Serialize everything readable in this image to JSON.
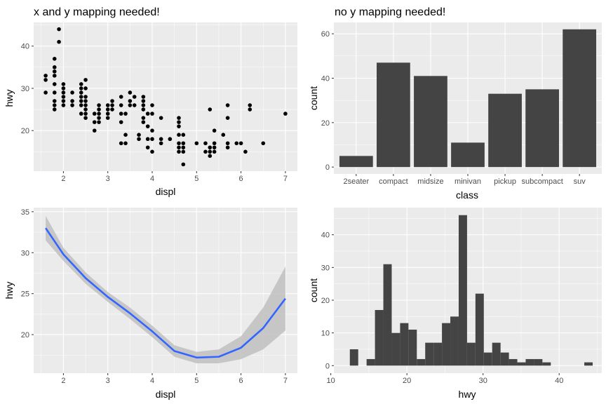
{
  "chart_data": [
    {
      "type": "scatter",
      "title": "x and y mapping needed!",
      "xlabel": "displ",
      "ylabel": "hwy",
      "xlim": [
        1.33,
        7.27
      ],
      "ylim": [
        10.4,
        45.6
      ],
      "xticks": [
        2,
        3,
        4,
        5,
        6,
        7
      ],
      "yticks": [
        20,
        30,
        40
      ],
      "points": [
        [
          1.6,
          33
        ],
        [
          1.6,
          32
        ],
        [
          1.6,
          29
        ],
        [
          1.8,
          37
        ],
        [
          1.8,
          35
        ],
        [
          1.8,
          34
        ],
        [
          1.8,
          33
        ],
        [
          1.8,
          31
        ],
        [
          1.8,
          29
        ],
        [
          1.8,
          27
        ],
        [
          1.8,
          26
        ],
        [
          1.8,
          25
        ],
        [
          1.9,
          44
        ],
        [
          1.9,
          41
        ],
        [
          2.0,
          31
        ],
        [
          2.0,
          30
        ],
        [
          2.0,
          29
        ],
        [
          2.0,
          28
        ],
        [
          2.0,
          27
        ],
        [
          2.0,
          26
        ],
        [
          2.2,
          29
        ],
        [
          2.2,
          27
        ],
        [
          2.2,
          26
        ],
        [
          2.4,
          31
        ],
        [
          2.4,
          30
        ],
        [
          2.4,
          29
        ],
        [
          2.4,
          28
        ],
        [
          2.4,
          27
        ],
        [
          2.4,
          26
        ],
        [
          2.4,
          24
        ],
        [
          2.5,
          32
        ],
        [
          2.5,
          30
        ],
        [
          2.5,
          28
        ],
        [
          2.5,
          27
        ],
        [
          2.5,
          26
        ],
        [
          2.5,
          25
        ],
        [
          2.5,
          24
        ],
        [
          2.5,
          23
        ],
        [
          2.7,
          24
        ],
        [
          2.7,
          22
        ],
        [
          2.7,
          20
        ],
        [
          2.8,
          26
        ],
        [
          2.8,
          25
        ],
        [
          2.8,
          24
        ],
        [
          2.8,
          23
        ],
        [
          2.8,
          22
        ],
        [
          3.0,
          26
        ],
        [
          3.0,
          25
        ],
        [
          3.0,
          24
        ],
        [
          3.0,
          23
        ],
        [
          3.1,
          27
        ],
        [
          3.1,
          26
        ],
        [
          3.1,
          25
        ],
        [
          3.3,
          28
        ],
        [
          3.3,
          26
        ],
        [
          3.3,
          24
        ],
        [
          3.3,
          22
        ],
        [
          3.3,
          17
        ],
        [
          3.4,
          24
        ],
        [
          3.4,
          19
        ],
        [
          3.4,
          17
        ],
        [
          3.5,
          29
        ],
        [
          3.5,
          27
        ],
        [
          3.5,
          26
        ],
        [
          3.6,
          28
        ],
        [
          3.6,
          26
        ],
        [
          3.7,
          19
        ],
        [
          3.7,
          18
        ],
        [
          3.8,
          28
        ],
        [
          3.8,
          27
        ],
        [
          3.8,
          26
        ],
        [
          3.8,
          25
        ],
        [
          3.8,
          23
        ],
        [
          3.8,
          22
        ],
        [
          3.9,
          24
        ],
        [
          3.9,
          21
        ],
        [
          3.9,
          18
        ],
        [
          3.9,
          16
        ],
        [
          4.0,
          26
        ],
        [
          4.0,
          24
        ],
        [
          4.0,
          20
        ],
        [
          4.0,
          18
        ],
        [
          4.0,
          15
        ],
        [
          4.2,
          23
        ],
        [
          4.2,
          18
        ],
        [
          4.2,
          17
        ],
        [
          4.4,
          18
        ],
        [
          4.6,
          23
        ],
        [
          4.6,
          22
        ],
        [
          4.6,
          21
        ],
        [
          4.6,
          19
        ],
        [
          4.6,
          17
        ],
        [
          4.6,
          16
        ],
        [
          4.6,
          15
        ],
        [
          4.7,
          19
        ],
        [
          4.7,
          17
        ],
        [
          4.7,
          16
        ],
        [
          4.7,
          15
        ],
        [
          4.7,
          12
        ],
        [
          5.0,
          17
        ],
        [
          5.2,
          15
        ],
        [
          5.2,
          17
        ],
        [
          5.3,
          25
        ],
        [
          5.3,
          16
        ],
        [
          5.3,
          15
        ],
        [
          5.3,
          14
        ],
        [
          5.4,
          20
        ],
        [
          5.4,
          17
        ],
        [
          5.4,
          16
        ],
        [
          5.4,
          15
        ],
        [
          5.6,
          19
        ],
        [
          5.7,
          26
        ],
        [
          5.7,
          23
        ],
        [
          5.7,
          17
        ],
        [
          5.7,
          16
        ],
        [
          5.9,
          17
        ],
        [
          6.0,
          17
        ],
        [
          6.1,
          15
        ],
        [
          6.2,
          26
        ],
        [
          6.2,
          25
        ],
        [
          6.5,
          17
        ],
        [
          7.0,
          24
        ]
      ]
    },
    {
      "type": "bar",
      "title": "no y mapping needed!",
      "xlabel": "class",
      "ylabel": "count",
      "categories": [
        "2seater",
        "compact",
        "midsize",
        "minivan",
        "pickup",
        "subcompact",
        "suv"
      ],
      "values": [
        5,
        47,
        41,
        11,
        33,
        35,
        62
      ],
      "ylim": [
        -3.1,
        65.1
      ],
      "yticks": [
        0,
        20,
        40,
        60
      ]
    },
    {
      "type": "line",
      "title": "",
      "xlabel": "displ",
      "ylabel": "hwy",
      "xlim": [
        1.33,
        7.27
      ],
      "ylim": [
        15.3,
        35.5
      ],
      "xticks": [
        2,
        3,
        4,
        5,
        6,
        7
      ],
      "yticks": [
        20,
        25,
        30,
        35
      ],
      "series": [
        {
          "x": [
            1.6,
            2.0,
            2.5,
            3.0,
            3.5,
            4.0,
            4.5,
            5.0,
            5.5,
            6.0,
            6.5,
            7.0
          ],
          "y": [
            33.0,
            29.8,
            26.9,
            24.6,
            22.6,
            20.4,
            18.0,
            17.2,
            17.3,
            18.4,
            20.8,
            24.4
          ],
          "lower": [
            31.5,
            29.0,
            26.2,
            24.0,
            21.9,
            19.7,
            17.3,
            16.5,
            16.5,
            17.0,
            18.2,
            20.5
          ],
          "upper": [
            34.5,
            30.6,
            27.6,
            25.2,
            23.3,
            21.1,
            18.7,
            17.9,
            18.2,
            19.8,
            23.3,
            28.3
          ]
        }
      ],
      "colors": {
        "line": "#3366ff",
        "ribbon": "#bfbfbf"
      }
    },
    {
      "type": "bar",
      "subtype": "histogram",
      "title": "",
      "xlabel": "hwy",
      "ylabel": "count",
      "xlim": [
        10.4,
        45.6
      ],
      "ylim": [
        -2.3,
        48.3
      ],
      "xticks": [
        10,
        20,
        30,
        40
      ],
      "yticks": [
        0,
        10,
        20,
        30,
        40
      ],
      "bin_start": 11.4,
      "bin_width": 1.1,
      "counts": [
        0,
        5,
        0,
        2,
        17,
        31,
        10,
        13,
        11,
        2,
        7,
        7,
        13,
        15,
        46,
        7,
        22,
        4,
        7,
        4,
        2,
        1,
        2,
        2,
        1,
        0,
        0,
        0,
        0,
        1,
        0,
        0,
        2
      ]
    }
  ]
}
